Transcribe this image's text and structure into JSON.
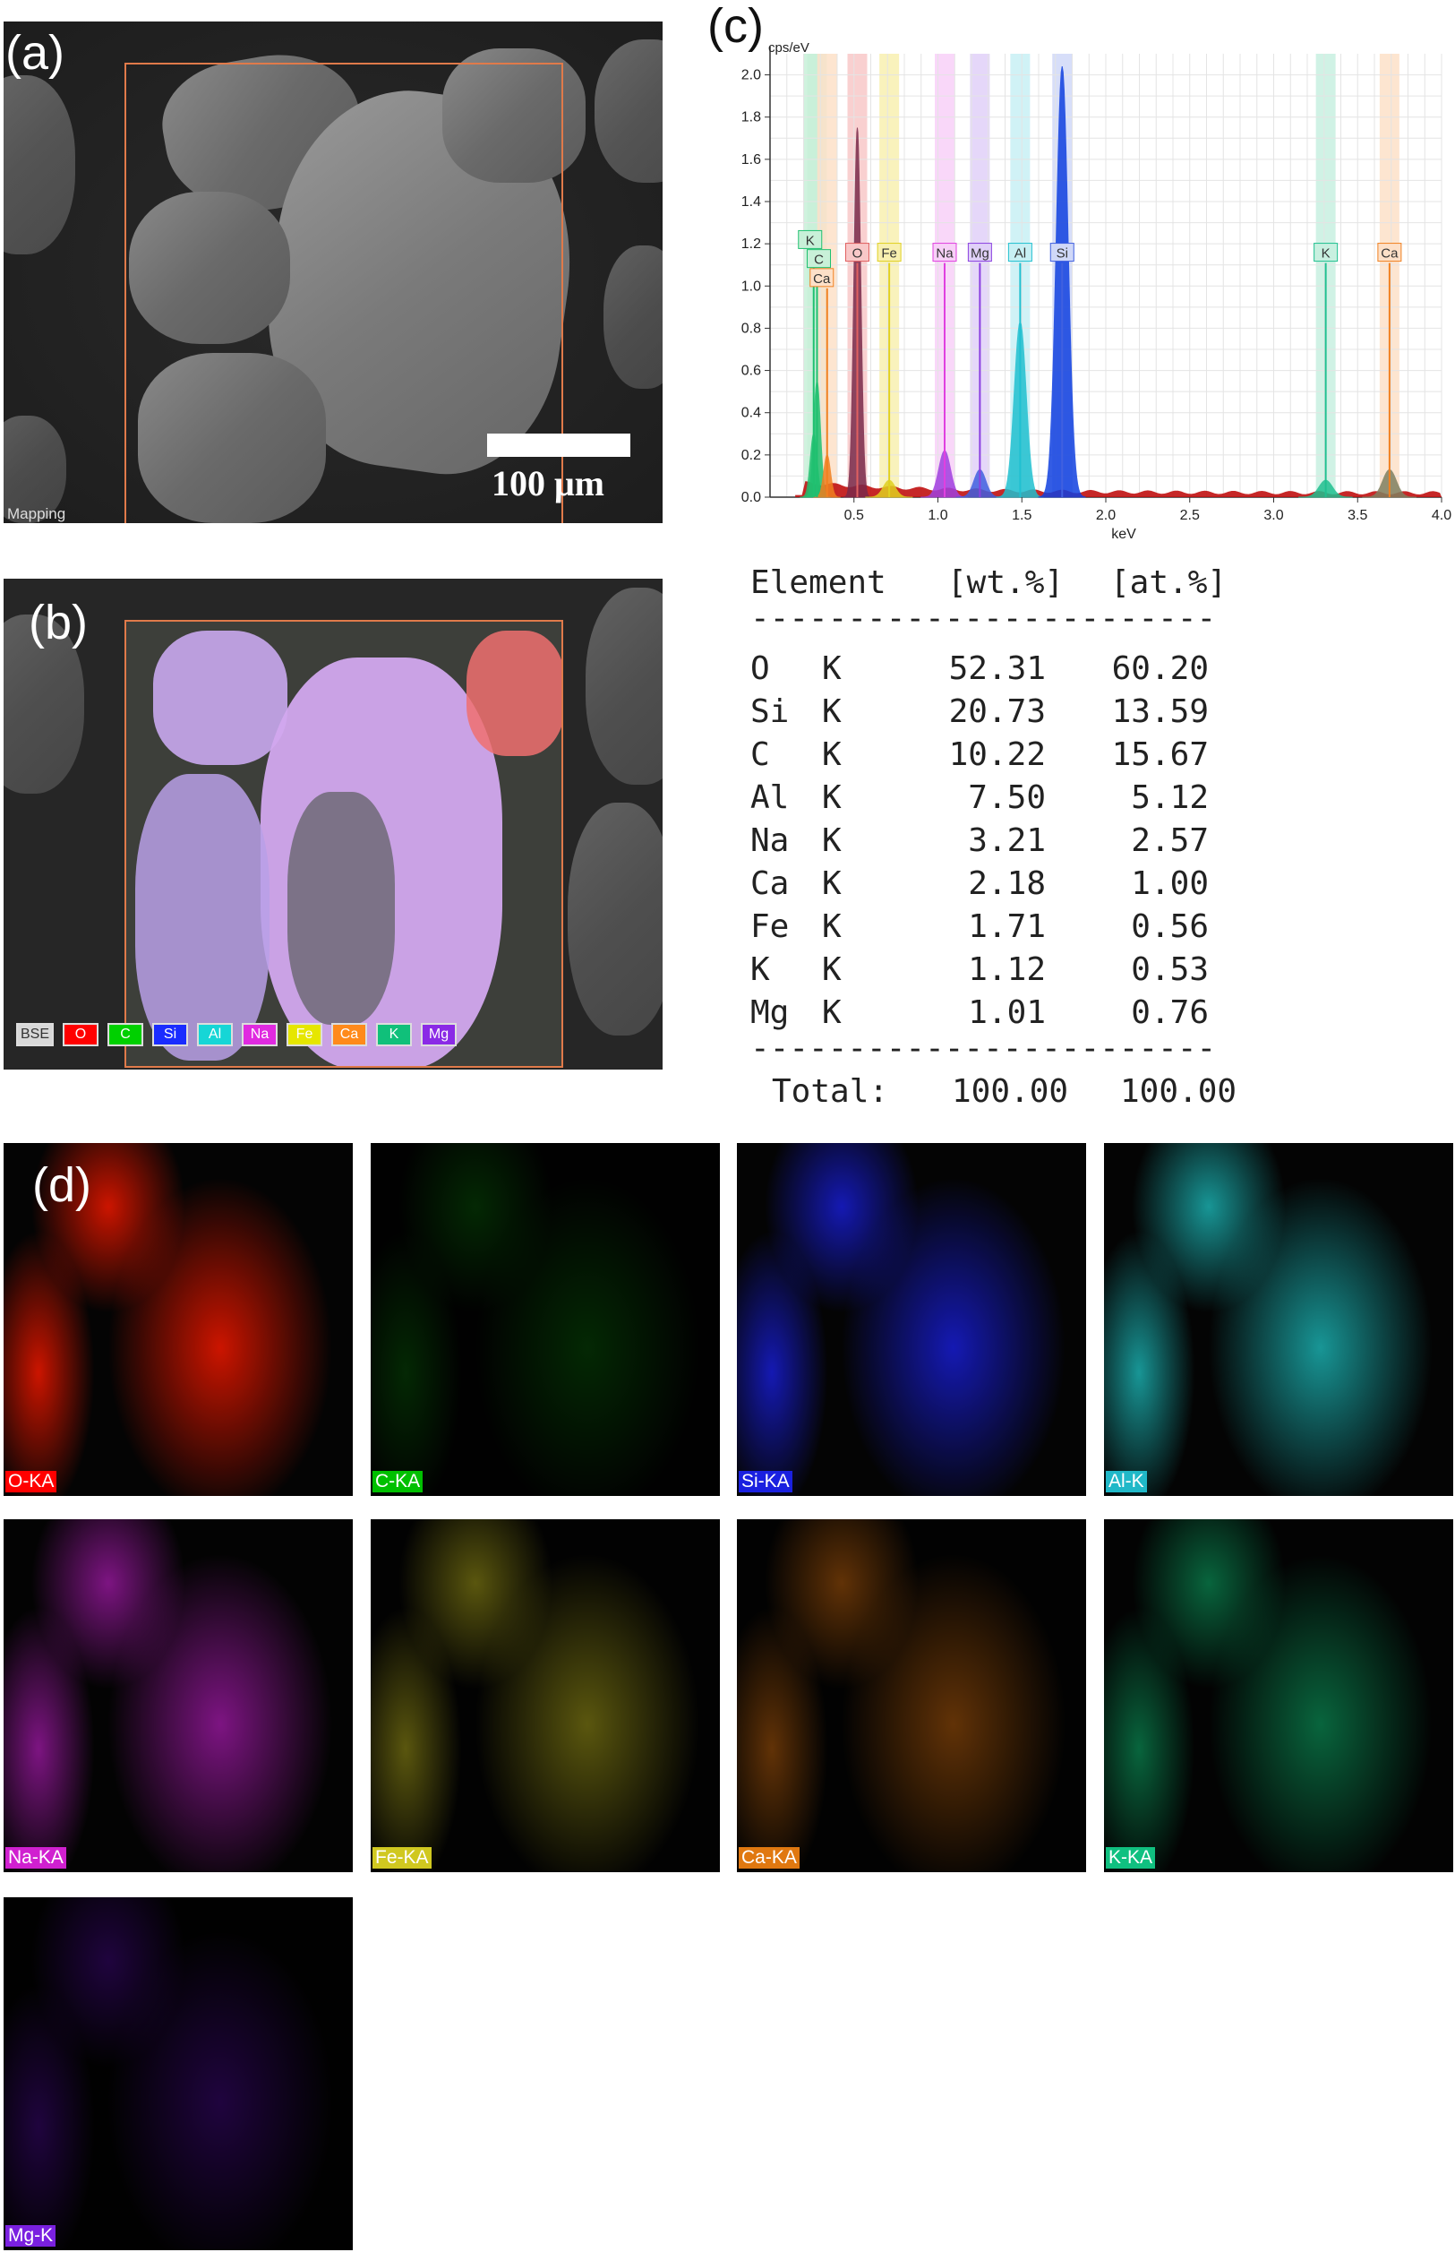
{
  "panels": {
    "a": "(a)",
    "b": "(b)",
    "c": "(c)",
    "d": "(d)"
  },
  "sem": {
    "scale_bar": "100 μm",
    "mode_label": "Mapping"
  },
  "overlay_legend": [
    {
      "label": "BSE",
      "color": "#d8d8d8"
    },
    {
      "label": "O",
      "color": "#ff0000"
    },
    {
      "label": "C",
      "color": "#00d000"
    },
    {
      "label": "Si",
      "color": "#1a2cff"
    },
    {
      "label": "Al",
      "color": "#16d6d6"
    },
    {
      "label": "Na",
      "color": "#e02ae0"
    },
    {
      "label": "Fe",
      "color": "#e6e600"
    },
    {
      "label": "Ca",
      "color": "#ff8a1a"
    },
    {
      "label": "K",
      "color": "#10c07a"
    },
    {
      "label": "Mg",
      "color": "#8a2ae6"
    }
  ],
  "chart_data": {
    "type": "area",
    "ylabel": "cps/eV",
    "xlabel": "keV",
    "xlim": [
      0.0,
      4.0
    ],
    "ylim": [
      0.0,
      2.1
    ],
    "x_ticks": [
      "0.5",
      "1.0",
      "1.5",
      "2.0",
      "2.5",
      "3.0",
      "3.5",
      "4.0"
    ],
    "y_ticks": [
      "0.0",
      "0.2",
      "0.4",
      "0.6",
      "0.8",
      "1.0",
      "1.2",
      "1.4",
      "1.6",
      "1.8",
      "2.0"
    ],
    "grid": true,
    "peaks": [
      {
        "label": "C",
        "energy": 0.28,
        "height": 0.55,
        "color": "#20c070"
      },
      {
        "label": "K",
        "energy": 0.26,
        "height": 0.3,
        "color": "#20c070"
      },
      {
        "label": "Ca",
        "energy": 0.34,
        "height": 0.2,
        "color": "#f08020"
      },
      {
        "label": "O",
        "energy": 0.52,
        "height": 1.75,
        "color": "#7a2a4a"
      },
      {
        "label": "Fe",
        "energy": 0.71,
        "height": 0.08,
        "color": "#e0d020"
      },
      {
        "label": "Na",
        "energy": 1.04,
        "height": 0.22,
        "color": "#a040e0"
      },
      {
        "label": "Mg",
        "energy": 1.25,
        "height": 0.13,
        "color": "#4060e0"
      },
      {
        "label": "Al",
        "energy": 1.49,
        "height": 0.83,
        "color": "#20c0d0"
      },
      {
        "label": "Si",
        "energy": 1.74,
        "height": 2.04,
        "color": "#1040e0"
      },
      {
        "label": "K",
        "energy": 3.31,
        "height": 0.08,
        "color": "#20c090"
      },
      {
        "label": "Ca",
        "energy": 3.69,
        "height": 0.13,
        "color": "#808060"
      }
    ],
    "markers": [
      {
        "label": "K",
        "energy": 0.26,
        "color": "#20c070",
        "band": "#c8f0d8"
      },
      {
        "label": "C",
        "energy": 0.28,
        "color": "#20c070",
        "band": "#c8f0d8"
      },
      {
        "label": "Ca",
        "energy": 0.34,
        "color": "#f08020",
        "band": "#fde0c8"
      },
      {
        "label": "O",
        "energy": 0.52,
        "color": "#e06060",
        "band": "#f8c8c8"
      },
      {
        "label": "Fe",
        "energy": 0.71,
        "color": "#e0d020",
        "band": "#f8f0b0"
      },
      {
        "label": "Na",
        "energy": 1.04,
        "color": "#e040e0",
        "band": "#f8d0f8"
      },
      {
        "label": "Mg",
        "energy": 1.25,
        "color": "#8a40e0",
        "band": "#e0d0f8"
      },
      {
        "label": "Al",
        "energy": 1.49,
        "color": "#20c0d0",
        "band": "#c8f0f4"
      },
      {
        "label": "Si",
        "energy": 1.74,
        "color": "#4060e0",
        "band": "#d0d8f8"
      },
      {
        "label": "K",
        "energy": 3.31,
        "color": "#20c090",
        "band": "#c8f0e0"
      },
      {
        "label": "Ca",
        "energy": 3.69,
        "color": "#f08020",
        "band": "#fde0c8"
      }
    ]
  },
  "table": {
    "header": {
      "element": "Element",
      "wt": "[wt.%]",
      "at": "[at.%]"
    },
    "rule": "------------------------",
    "rows": [
      {
        "el": "O",
        "line": "K",
        "wt": "52.31",
        "at": "60.20"
      },
      {
        "el": "Si",
        "line": "K",
        "wt": "20.73",
        "at": "13.59"
      },
      {
        "el": "C",
        "line": "K",
        "wt": "10.22",
        "at": "15.67"
      },
      {
        "el": "Al",
        "line": "K",
        "wt": "7.50",
        "at": "5.12"
      },
      {
        "el": "Na",
        "line": "K",
        "wt": "3.21",
        "at": "2.57"
      },
      {
        "el": "Ca",
        "line": "K",
        "wt": "2.18",
        "at": "1.00"
      },
      {
        "el": "Fe",
        "line": "K",
        "wt": "1.71",
        "at": "0.56"
      },
      {
        "el": "K",
        "line": "K",
        "wt": "1.12",
        "at": "0.53"
      },
      {
        "el": "Mg",
        "line": "K",
        "wt": "1.01",
        "at": "0.76"
      }
    ],
    "total": {
      "label": "Total:",
      "wt": "100.00",
      "at": "100.00"
    }
  },
  "maps": [
    {
      "label": "O-KA",
      "color": "#ff1a00",
      "label_bg": "#ff0000",
      "density": 0.8
    },
    {
      "label": "C-KA",
      "color": "#10a010",
      "label_bg": "#00c000",
      "density": 0.25
    },
    {
      "label": "Si-KA",
      "color": "#1a20e0",
      "label_bg": "#1a20e0",
      "density": 0.8
    },
    {
      "label": "Al-K",
      "color": "#20c8c8",
      "label_bg": "#20b8c8",
      "density": 0.75
    },
    {
      "label": "Na-KA",
      "color": "#c020c8",
      "label_bg": "#d020d0",
      "density": 0.65
    },
    {
      "label": "Fe-KA",
      "color": "#c8c020",
      "label_bg": "#d0c820",
      "density": 0.45
    },
    {
      "label": "Ca-KA",
      "color": "#d87010",
      "label_bg": "#e07810",
      "density": 0.45
    },
    {
      "label": "K-KA",
      "color": "#10b870",
      "label_bg": "#10c080",
      "density": 0.55
    },
    {
      "label": "Mg-K",
      "color": "#6a10d0",
      "label_bg": "#7a20e0",
      "density": 0.3
    }
  ]
}
